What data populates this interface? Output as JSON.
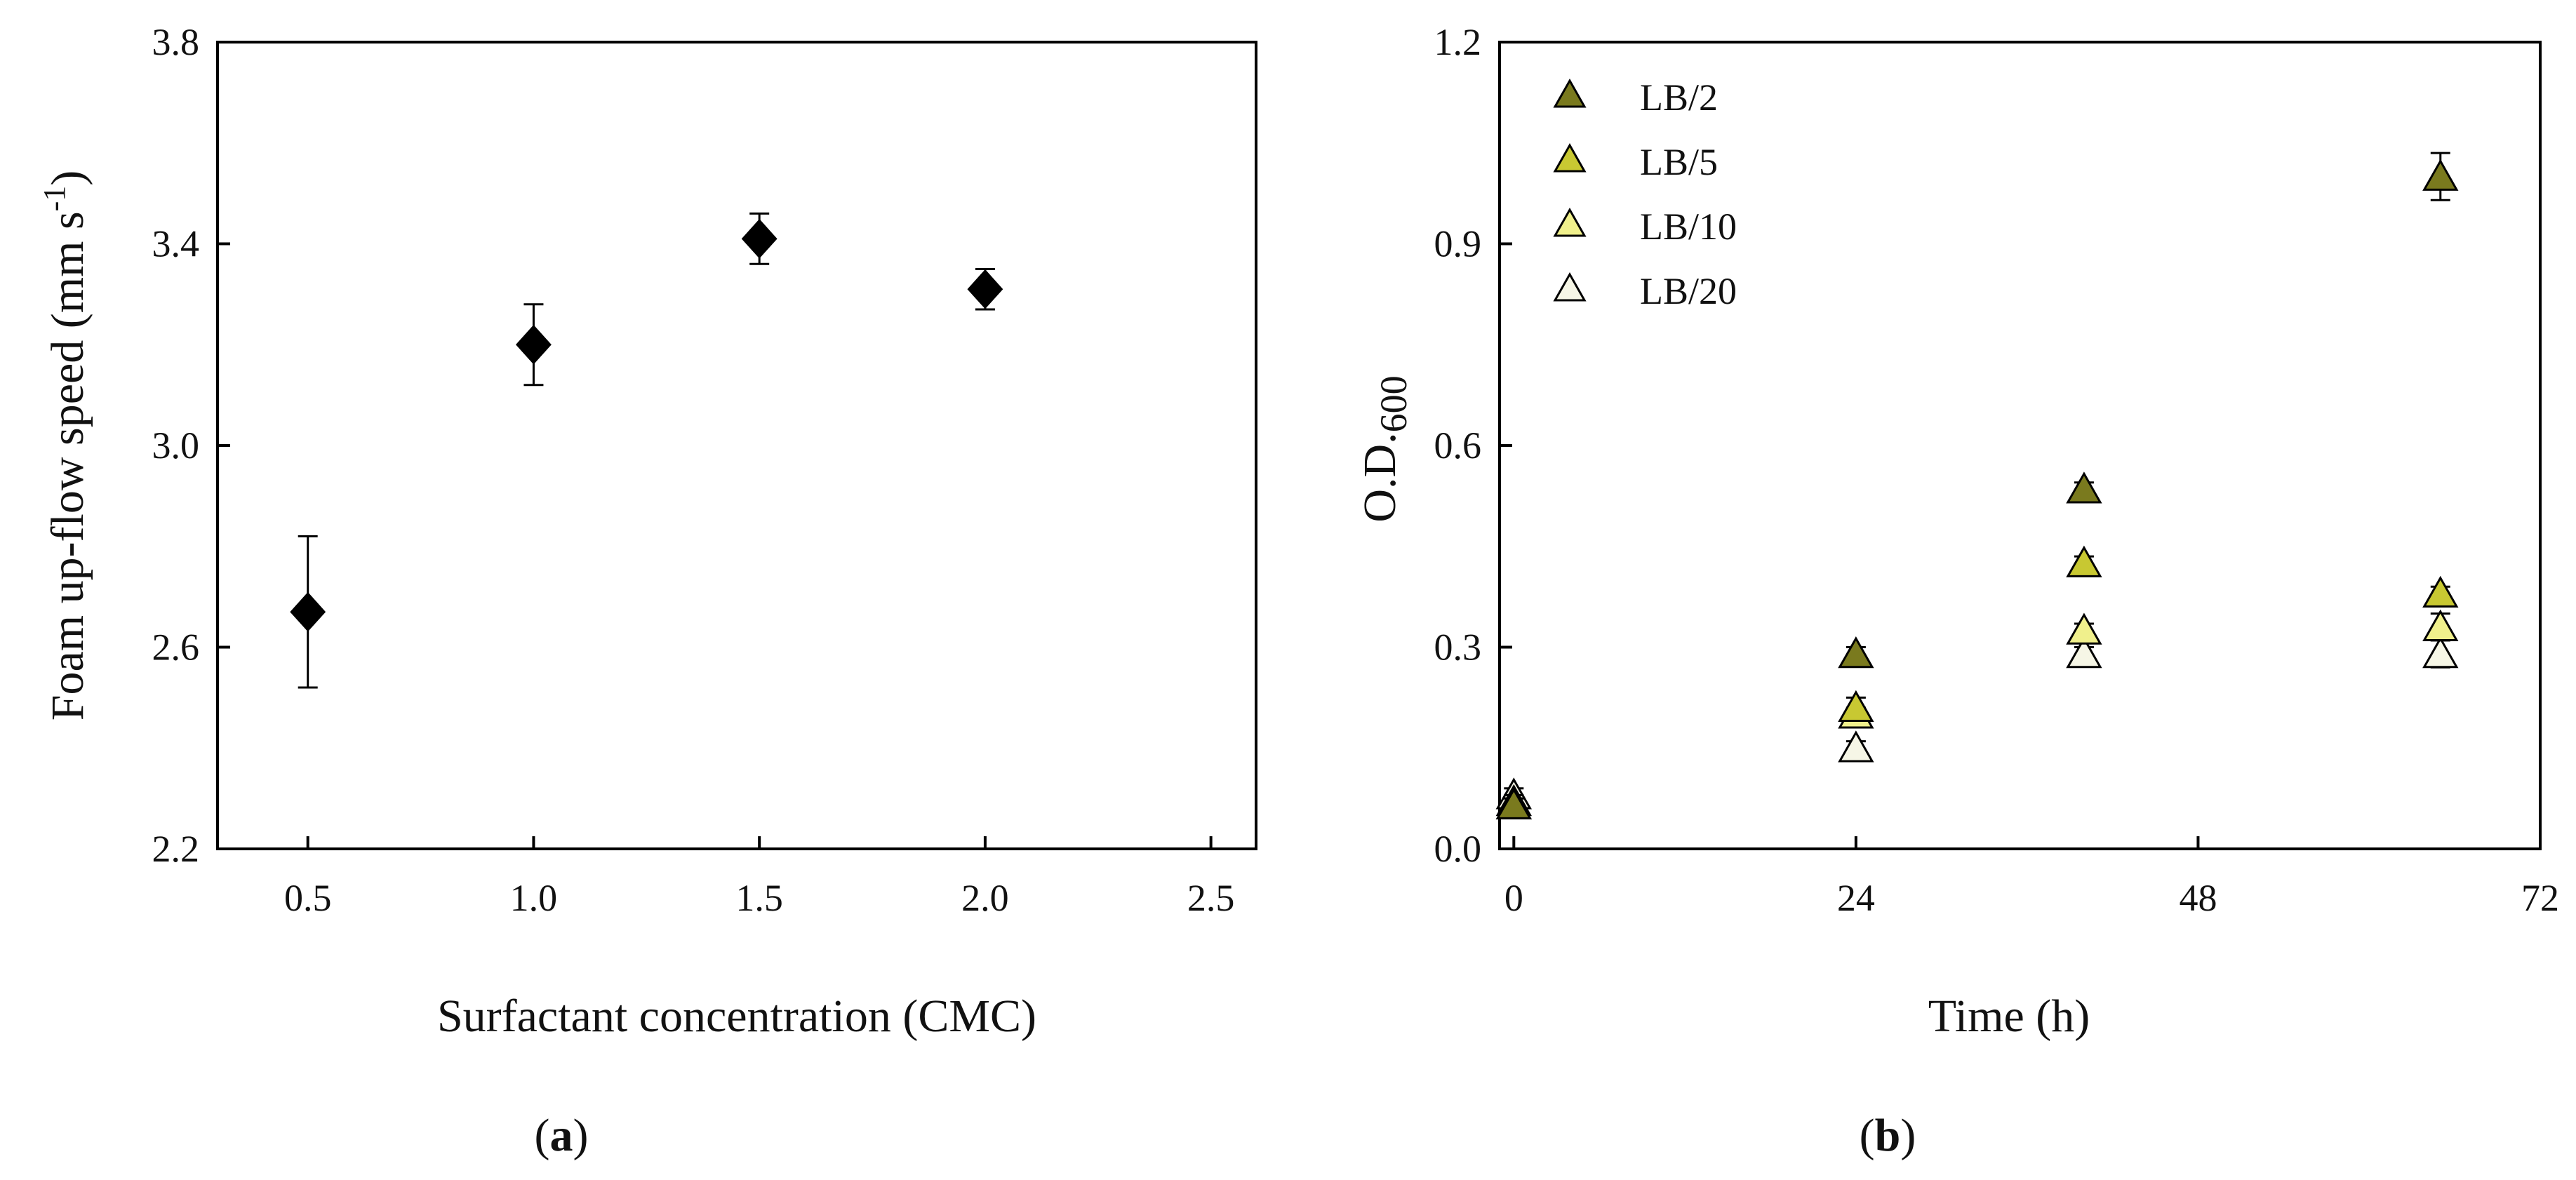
{
  "figure": {
    "panel_labels": [
      {
        "open": "(",
        "letter": "a",
        "close": ")"
      },
      {
        "open": "(",
        "letter": "b",
        "close": ")"
      }
    ]
  },
  "chart_data": [
    {
      "type": "scatter",
      "panel": "a",
      "xlabel": "Surfactant concentration (CMC)",
      "ylabel": {
        "main": "Foam up-flow speed (mm s",
        "sup": "-1",
        "end": ")"
      },
      "xlim": [
        0.3,
        2.6
      ],
      "ylim": [
        2.2,
        3.8
      ],
      "xticks": [
        "0.5",
        "1.0",
        "1.5",
        "2.0",
        "2.5"
      ],
      "yticks": [
        "2.2",
        "2.6",
        "3.0",
        "3.4",
        "3.8"
      ],
      "marker": "diamond",
      "marker_color": "#000000",
      "series": [
        {
          "name": "Foam up-flow speed",
          "x": [
            0.5,
            1.0,
            1.5,
            2.0
          ],
          "y": [
            2.67,
            3.2,
            3.41,
            3.31
          ],
          "err": [
            0.15,
            0.08,
            0.05,
            0.04
          ]
        }
      ]
    },
    {
      "type": "scatter",
      "panel": "b",
      "xlabel": "Time (h)",
      "ylabel": {
        "main": "O.D.",
        "sub": "600"
      },
      "xlim": [
        -1,
        72
      ],
      "ylim": [
        0.0,
        1.2
      ],
      "xticks": [
        "0",
        "24",
        "48",
        "72"
      ],
      "yticks": [
        "0.0",
        "0.3",
        "0.6",
        "0.9",
        "1.2"
      ],
      "marker": "triangle",
      "legend_position": "top-left",
      "series": [
        {
          "name": "LB/2",
          "color": "#7a7a1e",
          "x": [
            0,
            24,
            40,
            65
          ],
          "y": [
            0.065,
            0.29,
            0.535,
            1.0
          ],
          "err": [
            0.01,
            0.01,
            0.01,
            0.035
          ]
        },
        {
          "name": "LB/5",
          "color": "#c8c832",
          "x": [
            0,
            24,
            40,
            65
          ],
          "y": [
            0.065,
            0.21,
            0.425,
            0.38
          ],
          "err": [
            0.01,
            0.015,
            0.01,
            0.01
          ]
        },
        {
          "name": "LB/10",
          "color": "#f0f08c",
          "x": [
            0,
            24,
            40,
            65
          ],
          "y": [
            0.07,
            0.2,
            0.325,
            0.33
          ],
          "err": [
            0.01,
            0.01,
            0.01,
            0.02
          ]
        },
        {
          "name": "LB/20",
          "color": "#f6f6e6",
          "x": [
            0,
            24,
            40,
            65
          ],
          "y": [
            0.08,
            0.15,
            0.29,
            0.29
          ],
          "err": [
            0.01,
            0.01,
            0.01,
            0.02
          ]
        }
      ]
    }
  ]
}
